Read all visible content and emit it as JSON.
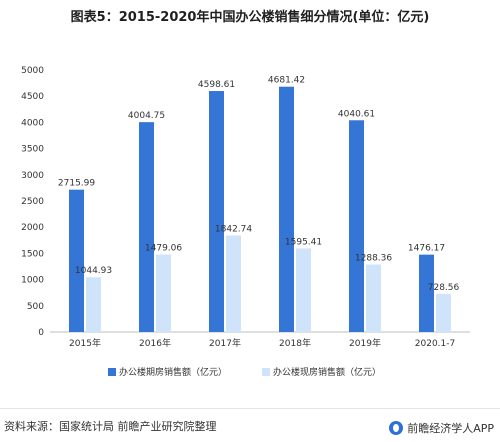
{
  "title": "图表5：2015-2020年中国办公楼销售细分情况(单位：亿元)",
  "footer": {
    "source": "资料来源：国家统计局 前瞻产业研究院整理",
    "brand": "前瞻经济学人APP"
  },
  "colors": {
    "series1": "#3575d6",
    "series2": "#cfe4fa"
  },
  "chart_data": {
    "type": "bar",
    "title": "图表5：2015-2020年中国办公楼销售细分情况(单位：亿元)",
    "categories": [
      "2015年",
      "2016年",
      "2017年",
      "2018年",
      "2019年",
      "2020.1-7"
    ],
    "series": [
      {
        "name": "办公楼期房销售额（亿元）",
        "values": [
          2715.99,
          4004.75,
          4598.61,
          4681.42,
          4040.61,
          1476.17
        ]
      },
      {
        "name": "办公楼现房销售额（亿元）",
        "values": [
          1044.93,
          1479.06,
          1842.74,
          1595.41,
          1288.36,
          728.56
        ]
      }
    ],
    "ylim": [
      0,
      5000
    ],
    "yticks": [
      0,
      500,
      1000,
      1500,
      2000,
      2500,
      3000,
      3500,
      4000,
      4500,
      5000
    ],
    "grid": false,
    "legend": "bottom"
  }
}
